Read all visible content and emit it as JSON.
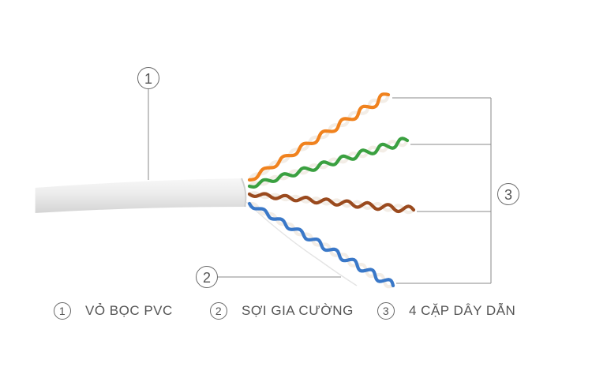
{
  "callouts": [
    {
      "num": "1"
    },
    {
      "num": "2"
    },
    {
      "num": "3"
    }
  ],
  "legend": [
    {
      "num": "1",
      "label": "VỎ BỌC PVC"
    },
    {
      "num": "2",
      "label": "SỢI GIA CƯỜNG"
    },
    {
      "num": "3",
      "label": "4 CẶP DÂY DẪN"
    }
  ],
  "colors": {
    "jacket": "#e9e9e9",
    "orange": "#f0821e",
    "green": "#3aa040",
    "brown": "#9a4a1e",
    "blue": "#3a78c8",
    "leader": "#8a8a8a"
  }
}
